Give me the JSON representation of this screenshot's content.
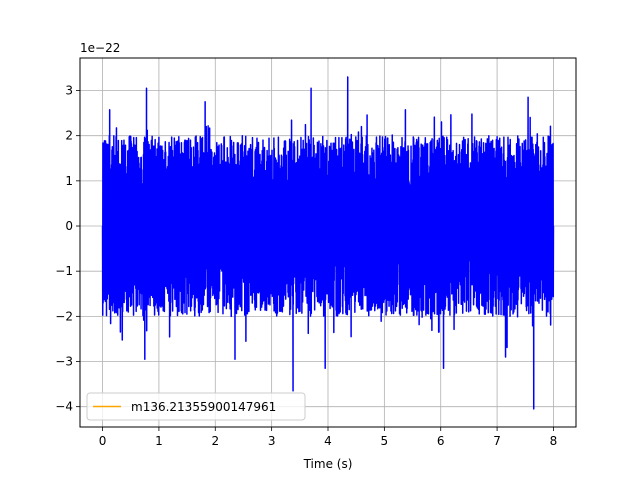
{
  "chart_data": {
    "type": "line",
    "title": "",
    "xlabel": "Time (s)",
    "ylabel": "",
    "y_scale_label": "1e−22",
    "xlim": [
      -0.4,
      8.4
    ],
    "ylim": [
      -4.45,
      3.72
    ],
    "grid": true,
    "xticks": [
      0,
      1,
      2,
      3,
      4,
      5,
      6,
      7,
      8
    ],
    "xtick_labels": [
      "0",
      "1",
      "2",
      "3",
      "4",
      "5",
      "6",
      "7",
      "8"
    ],
    "yticks": [
      -4,
      -3,
      -2,
      -1,
      0,
      1,
      2,
      3
    ],
    "ytick_labels": [
      "−4",
      "−3",
      "−2",
      "−1",
      "0",
      "1",
      "2",
      "3"
    ],
    "legend_position": "lower-left",
    "series": [
      {
        "name": "",
        "color": "#0000ff",
        "style": "dense noise signal",
        "x_range": [
          0,
          8
        ],
        "y_range_approx": [
          -4.05,
          3.3
        ],
        "typical_envelope": [
          -2.0,
          2.0
        ],
        "spikes": [
          {
            "x": 0.78,
            "y": 3.05
          },
          {
            "x": 1.82,
            "y": 2.75
          },
          {
            "x": 3.7,
            "y": 3.05
          },
          {
            "x": 4.35,
            "y": 3.3
          },
          {
            "x": 7.55,
            "y": 2.85
          },
          {
            "x": 3.38,
            "y": -3.65
          },
          {
            "x": 3.95,
            "y": -3.15
          },
          {
            "x": 6.05,
            "y": -3.15
          },
          {
            "x": 7.65,
            "y": -4.05
          },
          {
            "x": 0.75,
            "y": -2.95
          },
          {
            "x": 2.35,
            "y": -2.95
          },
          {
            "x": 7.15,
            "y": -2.9
          }
        ]
      },
      {
        "name": "m136.21355900147961",
        "color": "#ffa500",
        "style": "legend-only line"
      }
    ]
  }
}
